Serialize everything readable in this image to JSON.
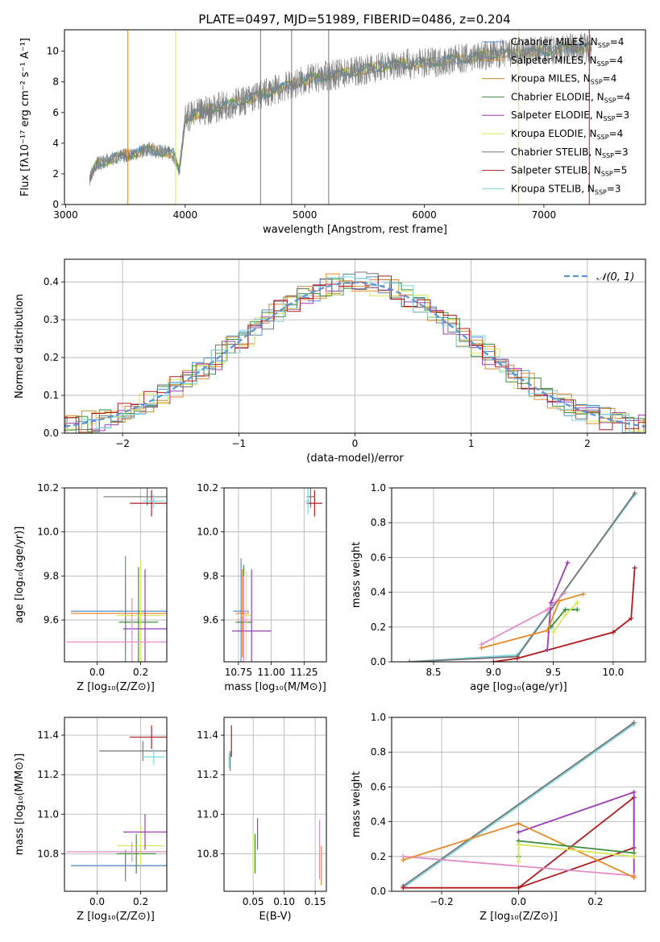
{
  "title": "PLATE=0497, MJD=51989, FIBERID=0486, z=0.204",
  "colors": {
    "c0": "#4f8fd0",
    "c1": "#e78a2a",
    "c2": "#c98a30",
    "c3": "#3a8f3a",
    "c4": "#9b3fb5",
    "c5": "#d8e85a",
    "c6": "#777777",
    "c7": "#b01c1c",
    "c8": "#7fd6e0",
    "pinkish": "#e58cc6",
    "orange2": "#c97c3a"
  },
  "chart_data": [
    {
      "id": "spectrum",
      "type": "line",
      "xlabel": "wavelength [Angstrom, rest frame]",
      "ylabel": "Flux [fλ10⁻¹⁷ erg cm⁻² s⁻¹ A⁻¹]",
      "xlim": [
        2990,
        7850
      ],
      "ylim": [
        0,
        11.4
      ],
      "xticks": [
        "3000",
        "4000",
        "5000",
        "6000",
        "7000"
      ],
      "yticks": [
        "0",
        "2",
        "4",
        "6",
        "8",
        "10"
      ],
      "legend": [
        {
          "label": "Chabrier MILES, N",
          "sub": "SSP",
          "val": "=4",
          "color": "c0"
        },
        {
          "label": "Salpeter MILES, N",
          "sub": "SSP",
          "val": "=4",
          "color": "c1"
        },
        {
          "label": "Kroupa MILES, N",
          "sub": "SSP",
          "val": "=4",
          "color": "c2"
        },
        {
          "label": "Chabrier ELODIE, N",
          "sub": "SSP",
          "val": "=4",
          "color": "c3"
        },
        {
          "label": "Salpeter ELODIE, N",
          "sub": "SSP",
          "val": "=3",
          "color": "c4"
        },
        {
          "label": "Kroupa ELODIE, N",
          "sub": "SSP",
          "val": "=4",
          "color": "c5"
        },
        {
          "label": "Chabrier STELIB, N",
          "sub": "SSP",
          "val": "=3",
          "color": "c6"
        },
        {
          "label": "Salpeter STELIB, N",
          "sub": "SSP",
          "val": "=5",
          "color": "c7"
        },
        {
          "label": "Kroupa STELIB, N",
          "sub": "SSP",
          "val": "=3",
          "color": "c8"
        }
      ],
      "continuum": [
        [
          3200,
          1.6
        ],
        [
          3250,
          2.6
        ],
        [
          3400,
          3.0
        ],
        [
          3500,
          3.2
        ],
        [
          3700,
          3.6
        ],
        [
          3900,
          3.3
        ],
        [
          3950,
          2.2
        ],
        [
          4000,
          5.6
        ],
        [
          4200,
          6.2
        ],
        [
          4500,
          6.8
        ],
        [
          4800,
          7.6
        ],
        [
          5000,
          8.1
        ],
        [
          5200,
          8.4
        ],
        [
          5500,
          8.8
        ],
        [
          5800,
          9.2
        ],
        [
          6000,
          9.2
        ],
        [
          6200,
          9.4
        ],
        [
          6400,
          9.6
        ],
        [
          6600,
          9.8
        ],
        [
          6800,
          9.9
        ],
        [
          7000,
          10.0
        ],
        [
          7200,
          10.2
        ],
        [
          7400,
          10.3
        ]
      ]
    },
    {
      "id": "residuals",
      "type": "area",
      "xlabel": "(data-model)/error",
      "ylabel": "Normed distribution",
      "xlim": [
        -2.5,
        2.5
      ],
      "ylim": [
        0,
        0.46
      ],
      "xticks": [
        "−2",
        "−1",
        "0",
        "1",
        "2"
      ],
      "yticks": [
        "0.0",
        "0.1",
        "0.2",
        "0.3",
        "0.4"
      ],
      "legend": "𝒩(0, 1)"
    },
    {
      "id": "age_vs_Z",
      "type": "scatter",
      "xlabel": "Z [log₁₀(Z/Z⊙)]",
      "ylabel": "age  [log₁₀(age/yr)]",
      "xlim": [
        -0.15,
        0.32
      ],
      "ylim": [
        9.41,
        10.2
      ],
      "xticks": [
        "0.0",
        "0.2"
      ],
      "yticks": [
        "9.6",
        "9.8",
        "10.0",
        "10.2"
      ],
      "points": [
        {
          "x": 0.23,
          "y": 10.16,
          "xerr": 0.2,
          "yerr": 0.04,
          "color": "c6"
        },
        {
          "x": 0.25,
          "y": 10.13,
          "xerr": 0.1,
          "yerr": 0.06,
          "color": "c7"
        },
        {
          "x": 0.26,
          "y": 10.14,
          "xerr": 0.05,
          "yerr": 0.03,
          "color": "c8"
        },
        {
          "x": 0.13,
          "y": 9.63,
          "xerr": 0.25,
          "yerr": 0.18,
          "color": "c1"
        },
        {
          "x": 0.13,
          "y": 9.64,
          "xerr": 0.25,
          "yerr": 0.25,
          "color": "c0"
        },
        {
          "x": 0.19,
          "y": 9.59,
          "xerr": 0.09,
          "yerr": 0.25,
          "color": "c3"
        },
        {
          "x": 0.2,
          "y": 9.62,
          "xerr": 0.11,
          "yerr": 0.25,
          "color": "c5"
        },
        {
          "x": 0.22,
          "y": 9.56,
          "xerr": 0.1,
          "yerr": 0.27,
          "color": "c4"
        },
        {
          "x": 0.16,
          "y": 9.5,
          "xerr": 0.3,
          "yerr": 0.2,
          "color": "pinkish"
        }
      ]
    },
    {
      "id": "age_vs_mass",
      "type": "scatter",
      "xlabel": "mass [log₁₀(M/M⊙)]",
      "ylabel": "",
      "xlim": [
        10.64,
        11.42
      ],
      "ylim": [
        9.41,
        10.2
      ],
      "xticks": [
        "10.75",
        "11.00",
        "11.25"
      ],
      "yticks": [
        "9.6",
        "9.8",
        "10.0",
        "10.2"
      ],
      "points": [
        {
          "x": 11.3,
          "y": 10.16,
          "xerr": 0.03,
          "yerr": 0.05,
          "color": "c6"
        },
        {
          "x": 11.33,
          "y": 10.13,
          "xerr": 0.06,
          "yerr": 0.06,
          "color": "c7"
        },
        {
          "x": 11.28,
          "y": 10.14,
          "xerr": 0.02,
          "yerr": 0.06,
          "color": "c8"
        },
        {
          "x": 10.77,
          "y": 9.64,
          "xerr": 0.06,
          "yerr": 0.24,
          "color": "c0"
        },
        {
          "x": 10.78,
          "y": 9.63,
          "xerr": 0.05,
          "yerr": 0.2,
          "color": "c1"
        },
        {
          "x": 10.79,
          "y": 9.59,
          "xerr": 0.06,
          "yerr": 0.26,
          "color": "c3"
        },
        {
          "x": 10.81,
          "y": 9.62,
          "xerr": 0.04,
          "yerr": 0.2,
          "color": "c5"
        },
        {
          "x": 10.85,
          "y": 9.55,
          "xerr": 0.15,
          "yerr": 0.28,
          "color": "c4"
        },
        {
          "x": 10.79,
          "y": 9.6,
          "xerr": 0.05,
          "yerr": 0.2,
          "color": "pinkish"
        }
      ]
    },
    {
      "id": "weight_vs_age",
      "type": "line",
      "xlabel": "age  [log₁₀(age/yr)]",
      "ylabel": "mass weight",
      "xlim": [
        8.15,
        10.27
      ],
      "ylim": [
        0,
        1
      ],
      "xticks": [
        "8.5",
        "9.0",
        "9.5",
        "10.0"
      ],
      "yticks": [
        "0.0",
        "0.2",
        "0.4",
        "0.6",
        "0.8",
        "1.0"
      ],
      "series": [
        {
          "color": "c8",
          "x": [
            8.3,
            9.2,
            10.18
          ],
          "y": [
            0.0,
            0.04,
            0.96
          ]
        },
        {
          "color": "c6",
          "x": [
            8.3,
            9.2,
            10.18
          ],
          "y": [
            0.0,
            0.03,
            0.97
          ]
        },
        {
          "color": "c7",
          "x": [
            9.0,
            9.2,
            10.0,
            10.15,
            10.18
          ],
          "y": [
            0.0,
            0.02,
            0.17,
            0.25,
            0.54
          ]
        },
        {
          "color": "c4",
          "x": [
            9.45,
            9.48,
            9.62
          ],
          "y": [
            0.07,
            0.34,
            0.57
          ]
        },
        {
          "color": "pinkish",
          "x": [
            8.9,
            9.45,
            9.6
          ],
          "y": [
            0.1,
            0.3,
            0.4
          ]
        },
        {
          "color": "c1",
          "x": [
            8.9,
            9.45,
            9.55,
            9.75
          ],
          "y": [
            0.08,
            0.18,
            0.35,
            0.39
          ]
        },
        {
          "color": "c3",
          "x": [
            9.48,
            9.6,
            9.7
          ],
          "y": [
            0.2,
            0.3,
            0.3
          ]
        },
        {
          "color": "c5",
          "x": [
            9.5,
            9.6,
            9.7
          ],
          "y": [
            0.17,
            0.27,
            0.34
          ]
        }
      ]
    },
    {
      "id": "mass_vs_Z",
      "type": "scatter",
      "xlabel": "Z [log₁₀(Z/Z⊙)]",
      "ylabel": "mass [log₁₀(M/M⊙)]",
      "xlim": [
        -0.15,
        0.32
      ],
      "ylim": [
        10.61,
        11.49
      ],
      "xticks": [
        "0.0",
        "0.2"
      ],
      "yticks": [
        "10.8",
        "11.0",
        "11.2",
        "11.4"
      ],
      "points": [
        {
          "x": 0.25,
          "y": 11.39,
          "xerr": 0.1,
          "yerr": 0.06,
          "color": "c7"
        },
        {
          "x": 0.21,
          "y": 11.32,
          "xerr": 0.2,
          "yerr": 0.05,
          "color": "c6"
        },
        {
          "x": 0.26,
          "y": 11.29,
          "xerr": 0.05,
          "yerr": 0.04,
          "color": "c8"
        },
        {
          "x": 0.13,
          "y": 10.74,
          "xerr": 0.25,
          "yerr": 0.06,
          "color": "c1"
        },
        {
          "x": 0.13,
          "y": 10.74,
          "xerr": 0.25,
          "yerr": 0.08,
          "color": "c0"
        },
        {
          "x": 0.18,
          "y": 10.8,
          "xerr": 0.09,
          "yerr": 0.1,
          "color": "c3"
        },
        {
          "x": 0.2,
          "y": 10.84,
          "xerr": 0.11,
          "yerr": 0.1,
          "color": "c5"
        },
        {
          "x": 0.22,
          "y": 10.91,
          "xerr": 0.1,
          "yerr": 0.09,
          "color": "c4"
        },
        {
          "x": 0.16,
          "y": 10.81,
          "xerr": 0.3,
          "yerr": 0.05,
          "color": "pinkish"
        }
      ]
    },
    {
      "id": "mass_vs_ebv",
      "type": "scatter",
      "xlabel": "E(B-V)",
      "ylabel": "",
      "xlim": [
        0.003,
        0.168
      ],
      "ylim": [
        10.61,
        11.49
      ],
      "xticks": [
        "0.05",
        "0.10",
        "0.15"
      ],
      "yticks": [
        "10.8",
        "11.0",
        "11.2",
        "11.4"
      ],
      "points": [
        {
          "x": 0.015,
          "y": 11.37,
          "xerr": 0,
          "yerr": 0.08,
          "color": "c7"
        },
        {
          "x": 0.013,
          "y": 11.27,
          "xerr": 0,
          "yerr": 0.05,
          "color": "c6"
        },
        {
          "x": 0.011,
          "y": 11.27,
          "xerr": 0,
          "yerr": 0.04,
          "color": "c8"
        },
        {
          "x": 0.05,
          "y": 10.8,
          "xerr": 0,
          "yerr": 0.1,
          "color": "c5"
        },
        {
          "x": 0.053,
          "y": 10.8,
          "xerr": 0,
          "yerr": 0.1,
          "color": "c3"
        },
        {
          "x": 0.057,
          "y": 10.9,
          "xerr": 0,
          "yerr": 0.08,
          "color": "c4"
        },
        {
          "x": 0.157,
          "y": 10.82,
          "xerr": 0,
          "yerr": 0.15,
          "color": "pinkish"
        },
        {
          "x": 0.16,
          "y": 10.74,
          "xerr": 0,
          "yerr": 0.1,
          "color": "c1"
        }
      ]
    },
    {
      "id": "weight_vs_Z",
      "type": "line",
      "xlabel": "Z [log₁₀(Z/Z⊙)]",
      "ylabel": "mass weight",
      "xlim": [
        -0.33,
        0.33
      ],
      "ylim": [
        0,
        1
      ],
      "xticks": [
        "−0.2",
        "0.0",
        "0.2"
      ],
      "yticks": [
        "0.0",
        "0.2",
        "0.4",
        "0.6",
        "0.8",
        "1.0"
      ],
      "series": [
        {
          "color": "c8",
          "x": [
            -0.3,
            0.3
          ],
          "y": [
            0.02,
            0.96
          ]
        },
        {
          "color": "c6",
          "x": [
            -0.3,
            0.3
          ],
          "y": [
            0.03,
            0.97
          ]
        },
        {
          "color": "c7",
          "x": [
            -0.3,
            0.0,
            0.3,
            0.3,
            0.0
          ],
          "y": [
            0.02,
            0.02,
            0.54,
            0.25,
            0.02
          ]
        },
        {
          "color": "c4",
          "x": [
            0.0,
            0.3,
            0.3
          ],
          "y": [
            0.34,
            0.57,
            0.08
          ]
        },
        {
          "color": "pinkish",
          "x": [
            -0.3,
            0.3
          ],
          "y": [
            0.2,
            0.09
          ]
        },
        {
          "color": "c1",
          "x": [
            -0.3,
            0.0,
            0.3
          ],
          "y": [
            0.18,
            0.39,
            0.08
          ]
        },
        {
          "color": "c3",
          "x": [
            0.0,
            0.0,
            0.3
          ],
          "y": [
            0.2,
            0.29,
            0.22
          ]
        },
        {
          "color": "c5",
          "x": [
            0.0,
            0.0,
            0.3
          ],
          "y": [
            0.17,
            0.27,
            0.2
          ]
        }
      ]
    }
  ]
}
